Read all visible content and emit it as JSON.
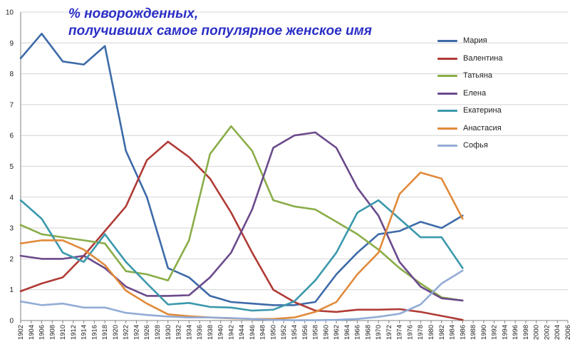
{
  "header": {
    "title_line1": "% новорожденных,",
    "title_line2": "получивших самое популярное женское имя"
  },
  "colors": {
    "title": "#2b2fc6",
    "grid": "#d4d4d4",
    "axis": "#7f7f7f"
  },
  "chart_data": {
    "type": "line",
    "title": "% новорожденных, получивших самое популярное женское имя",
    "xlabel": "",
    "ylabel": "",
    "ylim": [
      0,
      10
    ],
    "yticks": [
      "0",
      "1",
      "2",
      "3",
      "4",
      "5",
      "6",
      "7",
      "8",
      "9",
      "10"
    ],
    "grid": "horizontal",
    "legend_position": "right",
    "x": [
      "1902",
      "1904",
      "1906",
      "1908",
      "1910",
      "1912",
      "1914",
      "1916",
      "1918",
      "1920",
      "1922",
      "1924",
      "1926",
      "1928",
      "1930",
      "1932",
      "1934",
      "1936",
      "1938",
      "1940",
      "1942",
      "1944",
      "1946",
      "1948",
      "1950",
      "1952",
      "1954",
      "1956",
      "1958",
      "1960",
      "1962",
      "1964",
      "1966",
      "1968",
      "1970",
      "1972",
      "1974",
      "1976",
      "1978",
      "1980",
      "1982",
      "1984",
      "1986",
      "1988",
      "1990",
      "1992",
      "1994",
      "1996",
      "1998",
      "2000",
      "2002",
      "2004",
      "2006"
    ],
    "series": [
      {
        "name": "Мария",
        "color": "#3d6aa8",
        "points": [
          [
            1902,
            8.5
          ],
          [
            1906,
            9.3
          ],
          [
            1910,
            8.4
          ],
          [
            1914,
            8.3
          ],
          [
            1918,
            8.9
          ],
          [
            1922,
            5.5
          ],
          [
            1926,
            4.0
          ],
          [
            1930,
            1.7
          ],
          [
            1934,
            1.4
          ],
          [
            1938,
            0.8
          ],
          [
            1942,
            0.6
          ],
          [
            1946,
            0.55
          ],
          [
            1950,
            0.5
          ],
          [
            1954,
            0.5
          ],
          [
            1958,
            0.6
          ],
          [
            1962,
            1.5
          ],
          [
            1966,
            2.2
          ],
          [
            1970,
            2.8
          ],
          [
            1974,
            2.9
          ],
          [
            1978,
            3.2
          ],
          [
            1982,
            3.0
          ],
          [
            1986,
            3.4
          ]
        ]
      },
      {
        "name": "Валентина",
        "color": "#b03b36",
        "points": [
          [
            1902,
            0.95
          ],
          [
            1906,
            1.2
          ],
          [
            1910,
            1.4
          ],
          [
            1914,
            2.1
          ],
          [
            1918,
            2.9
          ],
          [
            1922,
            3.7
          ],
          [
            1926,
            5.2
          ],
          [
            1930,
            5.8
          ],
          [
            1934,
            5.3
          ],
          [
            1938,
            4.6
          ],
          [
            1942,
            3.5
          ],
          [
            1946,
            2.2
          ],
          [
            1950,
            1.0
          ],
          [
            1954,
            0.6
          ],
          [
            1958,
            0.32
          ],
          [
            1962,
            0.28
          ],
          [
            1966,
            0.35
          ],
          [
            1970,
            0.35
          ],
          [
            1974,
            0.37
          ],
          [
            1978,
            0.28
          ],
          [
            1982,
            0.15
          ],
          [
            1986,
            0.02
          ]
        ]
      },
      {
        "name": "Татьяна",
        "color": "#8aad48",
        "points": [
          [
            1902,
            3.1
          ],
          [
            1906,
            2.8
          ],
          [
            1910,
            2.7
          ],
          [
            1914,
            2.6
          ],
          [
            1918,
            2.5
          ],
          [
            1922,
            1.6
          ],
          [
            1926,
            1.5
          ],
          [
            1930,
            1.3
          ],
          [
            1934,
            2.6
          ],
          [
            1938,
            5.4
          ],
          [
            1942,
            6.3
          ],
          [
            1946,
            5.5
          ],
          [
            1950,
            3.9
          ],
          [
            1954,
            3.7
          ],
          [
            1958,
            3.6
          ],
          [
            1962,
            3.2
          ],
          [
            1966,
            2.8
          ],
          [
            1970,
            2.3
          ],
          [
            1974,
            1.7
          ],
          [
            1978,
            1.2
          ],
          [
            1982,
            0.75
          ],
          [
            1986,
            0.65
          ]
        ]
      },
      {
        "name": "Елена",
        "color": "#6b4a8c",
        "points": [
          [
            1902,
            2.1
          ],
          [
            1906,
            2.0
          ],
          [
            1910,
            2.0
          ],
          [
            1914,
            2.1
          ],
          [
            1918,
            1.7
          ],
          [
            1922,
            1.1
          ],
          [
            1926,
            0.8
          ],
          [
            1930,
            0.8
          ],
          [
            1934,
            0.82
          ],
          [
            1938,
            1.4
          ],
          [
            1942,
            2.2
          ],
          [
            1946,
            3.6
          ],
          [
            1950,
            5.6
          ],
          [
            1954,
            6.0
          ],
          [
            1958,
            6.1
          ],
          [
            1962,
            5.6
          ],
          [
            1966,
            4.3
          ],
          [
            1970,
            3.4
          ],
          [
            1974,
            1.9
          ],
          [
            1978,
            1.1
          ],
          [
            1982,
            0.72
          ],
          [
            1986,
            0.65
          ]
        ]
      },
      {
        "name": "Екатерина",
        "color": "#3b98ac",
        "points": [
          [
            1902,
            3.9
          ],
          [
            1906,
            3.3
          ],
          [
            1910,
            2.2
          ],
          [
            1914,
            1.9
          ],
          [
            1918,
            2.8
          ],
          [
            1922,
            1.9
          ],
          [
            1926,
            1.2
          ],
          [
            1930,
            0.52
          ],
          [
            1934,
            0.57
          ],
          [
            1938,
            0.44
          ],
          [
            1942,
            0.42
          ],
          [
            1946,
            0.32
          ],
          [
            1950,
            0.35
          ],
          [
            1954,
            0.62
          ],
          [
            1958,
            1.3
          ],
          [
            1962,
            2.2
          ],
          [
            1966,
            3.5
          ],
          [
            1970,
            3.9
          ],
          [
            1974,
            3.3
          ],
          [
            1978,
            2.7
          ],
          [
            1982,
            2.7
          ],
          [
            1986,
            1.7
          ]
        ]
      },
      {
        "name": "Анастасия",
        "color": "#e08a3b",
        "points": [
          [
            1902,
            2.5
          ],
          [
            1906,
            2.6
          ],
          [
            1910,
            2.6
          ],
          [
            1914,
            2.3
          ],
          [
            1918,
            1.8
          ],
          [
            1922,
            0.97
          ],
          [
            1926,
            0.55
          ],
          [
            1930,
            0.2
          ],
          [
            1934,
            0.14
          ],
          [
            1938,
            0.1
          ],
          [
            1942,
            0.07
          ],
          [
            1946,
            0.05
          ],
          [
            1950,
            0.05
          ],
          [
            1954,
            0.1
          ],
          [
            1958,
            0.28
          ],
          [
            1962,
            0.6
          ],
          [
            1966,
            1.5
          ],
          [
            1970,
            2.2
          ],
          [
            1974,
            4.1
          ],
          [
            1978,
            4.8
          ],
          [
            1982,
            4.6
          ],
          [
            1986,
            3.3
          ]
        ]
      },
      {
        "name": "Софья",
        "color": "#93acd6",
        "points": [
          [
            1902,
            0.62
          ],
          [
            1906,
            0.5
          ],
          [
            1910,
            0.55
          ],
          [
            1914,
            0.42
          ],
          [
            1918,
            0.42
          ],
          [
            1922,
            0.25
          ],
          [
            1926,
            0.18
          ],
          [
            1930,
            0.13
          ],
          [
            1934,
            0.1
          ],
          [
            1938,
            0.1
          ],
          [
            1942,
            0.08
          ],
          [
            1946,
            0.05
          ],
          [
            1950,
            0.02
          ],
          [
            1954,
            0.01
          ],
          [
            1958,
            0.01
          ],
          [
            1962,
            0.02
          ],
          [
            1966,
            0.05
          ],
          [
            1970,
            0.12
          ],
          [
            1974,
            0.22
          ],
          [
            1978,
            0.52
          ],
          [
            1982,
            1.2
          ],
          [
            1986,
            1.62
          ]
        ]
      }
    ]
  }
}
